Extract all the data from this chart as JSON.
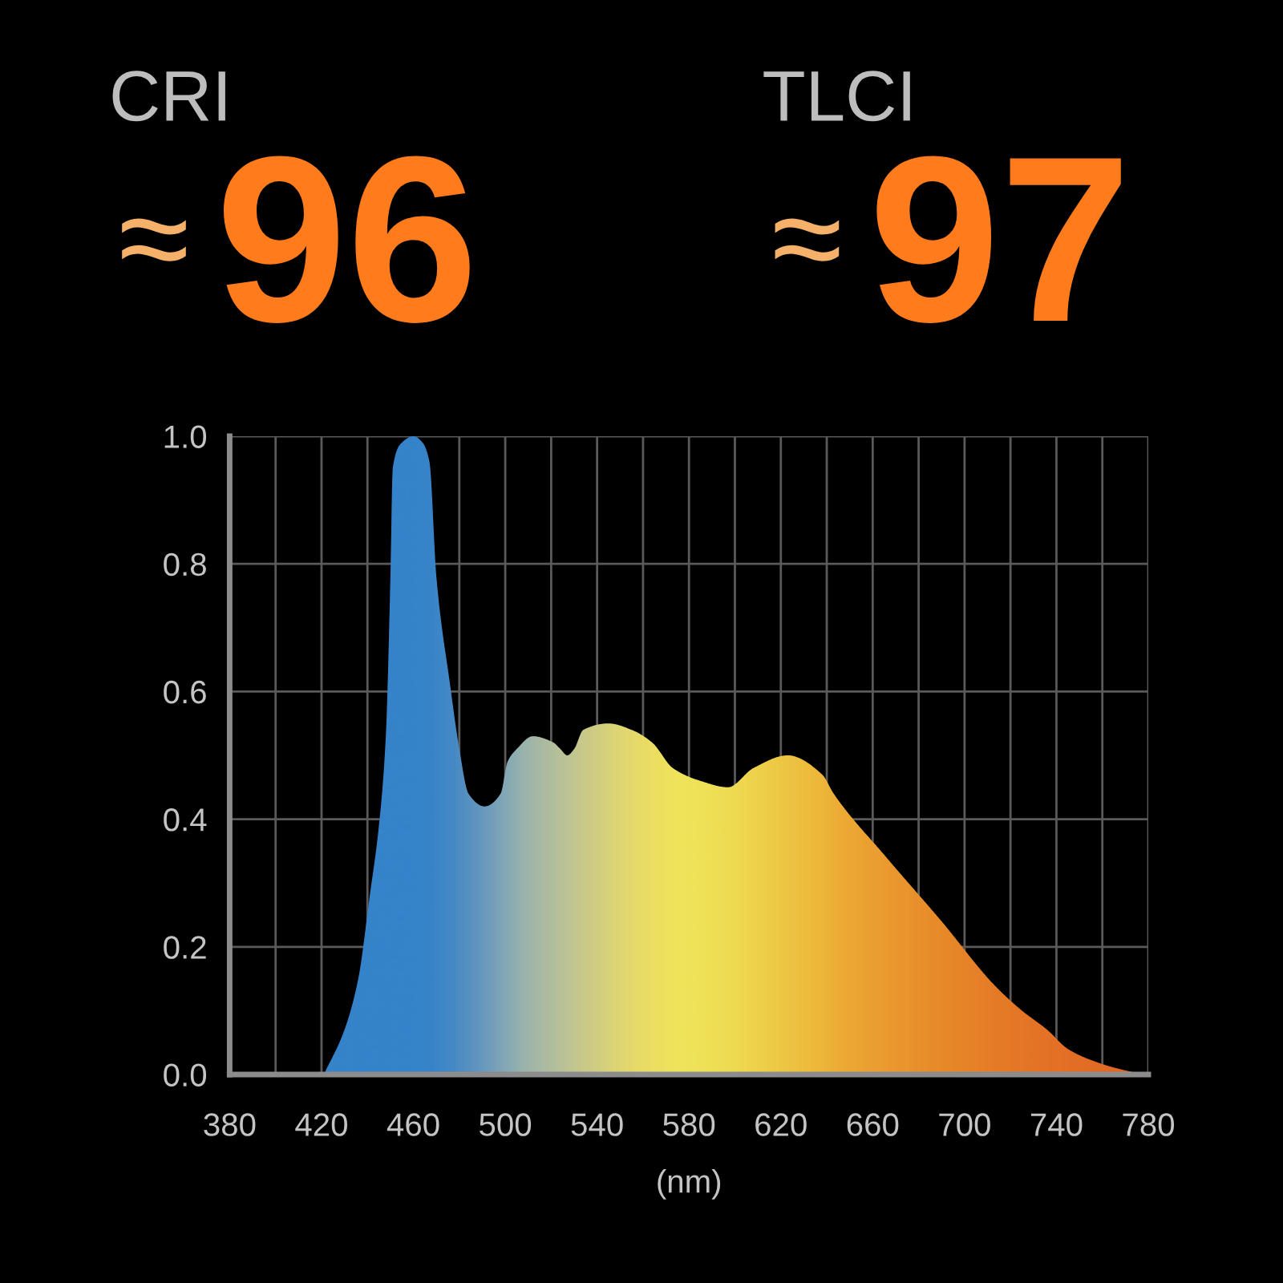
{
  "chart_data": {
    "type": "area",
    "annotations": [
      "CRI",
      "≈",
      "96",
      "TLCI",
      "≈",
      "97"
    ],
    "xlabel": "(nm)",
    "x": [
      421,
      430,
      436,
      441,
      445,
      448,
      450,
      451,
      455,
      460,
      464,
      467,
      470,
      476,
      480,
      484,
      491,
      498,
      501,
      505,
      512,
      521,
      524,
      527,
      530,
      534,
      545,
      555,
      564,
      573,
      585,
      597,
      608,
      623,
      638,
      643,
      666,
      690,
      713,
      725,
      736,
      745,
      757,
      766,
      778
    ],
    "values": [
      0,
      0.07,
      0.15,
      0.28,
      0.39,
      0.53,
      0.78,
      0.95,
      0.99,
      1.0,
      0.99,
      0.96,
      0.78,
      0.61,
      0.51,
      0.44,
      0.42,
      0.44,
      0.49,
      0.51,
      0.53,
      0.52,
      0.51,
      0.5,
      0.51,
      0.54,
      0.55,
      0.54,
      0.52,
      0.48,
      0.46,
      0.45,
      0.48,
      0.5,
      0.47,
      0.44,
      0.34,
      0.24,
      0.14,
      0.1,
      0.07,
      0.04,
      0.02,
      0.01,
      0
    ],
    "colors": [
      "#2a80d2",
      "#2a80d2",
      "#2a80d2",
      "#2a80d2",
      "#2a80d2",
      "#2a80d2",
      "#2a80d2",
      "#2a80d2",
      "#2a80d2",
      "#2a80d2",
      "#2c81d1",
      "#2e82d1",
      "#3384cf",
      "#3d88cc",
      "#4a8dc9",
      "#5592c6",
      "#6a9dc2",
      "#82aabb",
      "#8aaeb8",
      "#98b5b2",
      "#a8bca8",
      "#bac59c",
      "#c0c897",
      "#c6ca92",
      "#cccd8c",
      "#d2d086",
      "#e4db74",
      "#f0e266",
      "#f6e85c",
      "#f9ec56",
      "#f9e952",
      "#f9e24c",
      "#f8d744",
      "#f7c73a",
      "#f6b730",
      "#f5ae2d",
      "#f39925",
      "#f0871f",
      "#ee781c",
      "#ed721b",
      "#ec6d1b",
      "#eb6a1a",
      "#ea661a",
      "#ea641a",
      "#ea631a"
    ],
    "xlim": [
      380,
      780
    ],
    "xticks": [
      380,
      {
        "value": 400,
        "label": null
      },
      420,
      {
        "value": 440,
        "label": null
      },
      460,
      {
        "value": 480,
        "label": null
      },
      500,
      {
        "value": 520,
        "label": null
      },
      540,
      {
        "value": 560,
        "label": null
      },
      580,
      {
        "value": 600,
        "label": null
      },
      620,
      {
        "value": 640,
        "label": null
      },
      660,
      {
        "value": 680,
        "label": null
      },
      700,
      {
        "value": 720,
        "label": null
      },
      740,
      {
        "value": 760,
        "label": null
      },
      780
    ],
    "ylim": [
      0,
      1
    ],
    "yticks": [
      {
        "value": 0,
        "label": "0.0"
      },
      0.2,
      0.4,
      0.6,
      0.8,
      {
        "value": 1,
        "label": "1.0"
      }
    ],
    "grid": true
  }
}
